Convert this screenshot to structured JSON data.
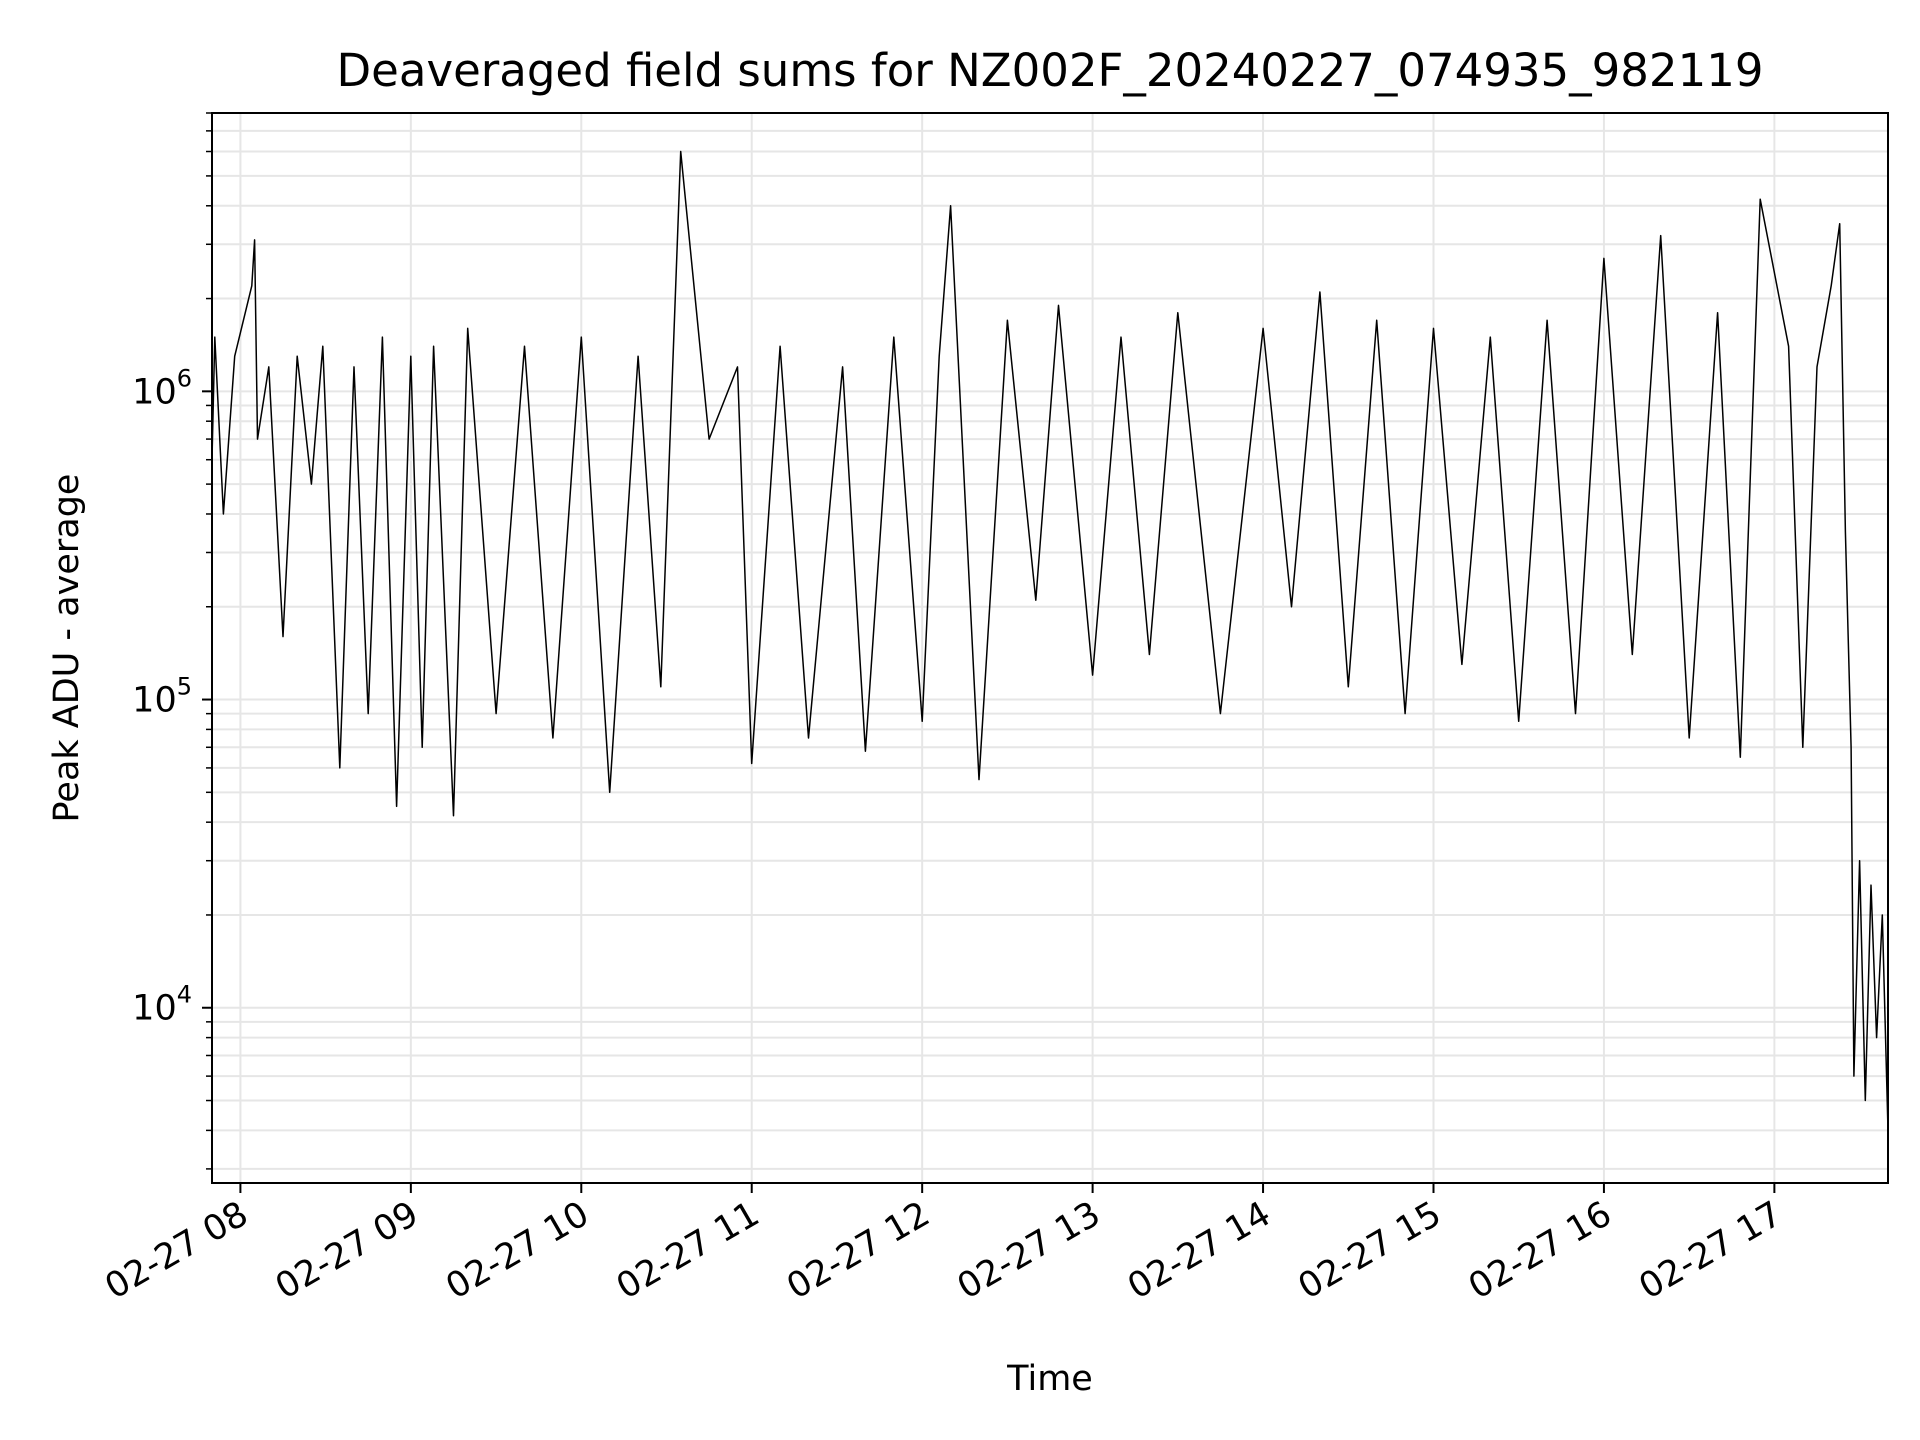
{
  "chart_data": {
    "type": "line",
    "title": "Deaveraged field sums for NZ002F_20240227_074935_982119",
    "xlabel": "Time",
    "ylabel": "Peak ADU - average",
    "y_scale": "log",
    "ylim": [
      2700,
      8000000
    ],
    "xlim": [
      "2024-02-27 07:50",
      "2024-02-27 17:40"
    ],
    "x_ticks": [
      {
        "time": "2024-02-27 08:00",
        "label": "02-27 08"
      },
      {
        "time": "2024-02-27 09:00",
        "label": "02-27 09"
      },
      {
        "time": "2024-02-27 10:00",
        "label": "02-27 10"
      },
      {
        "time": "2024-02-27 11:00",
        "label": "02-27 11"
      },
      {
        "time": "2024-02-27 12:00",
        "label": "02-27 12"
      },
      {
        "time": "2024-02-27 13:00",
        "label": "02-27 13"
      },
      {
        "time": "2024-02-27 14:00",
        "label": "02-27 14"
      },
      {
        "time": "2024-02-27 15:00",
        "label": "02-27 15"
      },
      {
        "time": "2024-02-27 16:00",
        "label": "02-27 16"
      },
      {
        "time": "2024-02-27 17:00",
        "label": "02-27 17"
      }
    ],
    "y_ticks": [
      {
        "value": 10000,
        "base": "10",
        "exp": "4"
      },
      {
        "value": 100000,
        "base": "10",
        "exp": "5"
      },
      {
        "value": 1000000,
        "base": "10",
        "exp": "6"
      }
    ],
    "grid": true,
    "line_color": "#000000",
    "grid_color": "#e6e6e6",
    "series": [
      {
        "x": [
          "2024-02-27 07:50",
          "2024-02-27 07:51",
          "2024-02-27 07:54",
          "2024-02-27 07:58",
          "2024-02-27 08:04",
          "2024-02-27 08:05",
          "2024-02-27 08:06",
          "2024-02-27 08:10",
          "2024-02-27 08:15",
          "2024-02-27 08:20",
          "2024-02-27 08:25",
          "2024-02-27 08:29",
          "2024-02-27 08:35",
          "2024-02-27 08:40",
          "2024-02-27 08:45",
          "2024-02-27 08:50",
          "2024-02-27 08:55",
          "2024-02-27 09:00",
          "2024-02-27 09:04",
          "2024-02-27 09:08",
          "2024-02-27 09:15",
          "2024-02-27 09:20",
          "2024-02-27 09:30",
          "2024-02-27 09:40",
          "2024-02-27 09:50",
          "2024-02-27 10:00",
          "2024-02-27 10:10",
          "2024-02-27 10:20",
          "2024-02-27 10:28",
          "2024-02-27 10:35",
          "2024-02-27 10:45",
          "2024-02-27 10:55",
          "2024-02-27 11:00",
          "2024-02-27 11:10",
          "2024-02-27 11:20",
          "2024-02-27 11:32",
          "2024-02-27 11:40",
          "2024-02-27 11:50",
          "2024-02-27 12:00",
          "2024-02-27 12:06",
          "2024-02-27 12:10",
          "2024-02-27 12:20",
          "2024-02-27 12:30",
          "2024-02-27 12:40",
          "2024-02-27 12:48",
          "2024-02-27 13:00",
          "2024-02-27 13:10",
          "2024-02-27 13:20",
          "2024-02-27 13:30",
          "2024-02-27 13:45",
          "2024-02-27 14:00",
          "2024-02-27 14:10",
          "2024-02-27 14:20",
          "2024-02-27 14:30",
          "2024-02-27 14:40",
          "2024-02-27 14:50",
          "2024-02-27 15:00",
          "2024-02-27 15:10",
          "2024-02-27 15:20",
          "2024-02-27 15:30",
          "2024-02-27 15:40",
          "2024-02-27 15:50",
          "2024-02-27 16:00",
          "2024-02-27 16:10",
          "2024-02-27 16:20",
          "2024-02-27 16:30",
          "2024-02-27 16:40",
          "2024-02-27 16:48",
          "2024-02-27 16:55",
          "2024-02-27 17:05",
          "2024-02-27 17:10",
          "2024-02-27 17:15",
          "2024-02-27 17:20",
          "2024-02-27 17:23",
          "2024-02-27 17:25",
          "2024-02-27 17:27",
          "2024-02-27 17:28",
          "2024-02-27 17:30",
          "2024-02-27 17:32",
          "2024-02-27 17:34",
          "2024-02-27 17:36",
          "2024-02-27 17:38",
          "2024-02-27 17:40"
        ],
        "y": [
          600000,
          1500000,
          400000,
          1300000,
          2200000,
          3100000,
          700000,
          1200000,
          160000,
          1300000,
          500000,
          1400000,
          60000,
          1200000,
          90000,
          1500000,
          45000,
          1300000,
          70000,
          1400000,
          42000,
          1600000,
          90000,
          1400000,
          75000,
          1500000,
          50000,
          1300000,
          110000,
          6000000,
          700000,
          1200000,
          62000,
          1400000,
          75000,
          1200000,
          68000,
          1500000,
          85000,
          1300000,
          4000000,
          55000,
          1700000,
          210000,
          1900000,
          120000,
          1500000,
          140000,
          1800000,
          90000,
          1600000,
          200000,
          2100000,
          110000,
          1700000,
          90000,
          1600000,
          130000,
          1500000,
          85000,
          1700000,
          90000,
          2700000,
          140000,
          3200000,
          75000,
          1800000,
          65000,
          4200000,
          1400000,
          70000,
          1200000,
          2200000,
          3500000,
          350000,
          70000,
          6000,
          30000,
          5000,
          25000,
          8000,
          20000,
          4000
        ]
      }
    ]
  }
}
